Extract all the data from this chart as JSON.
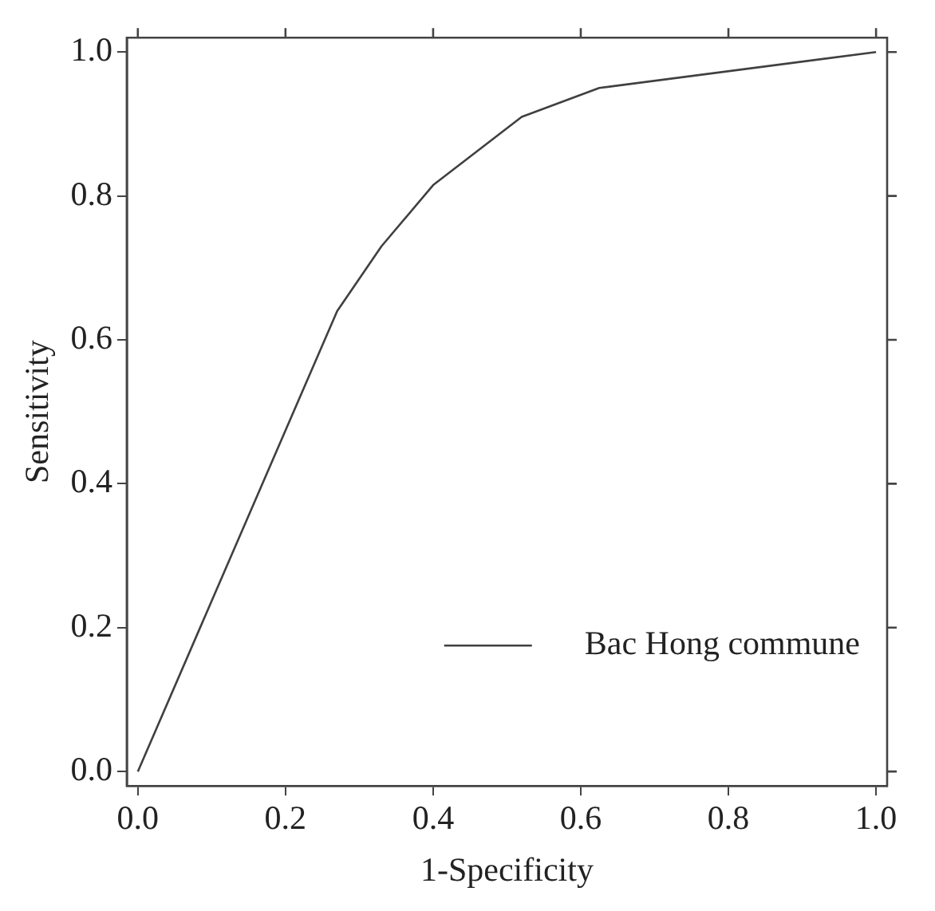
{
  "chart_data": {
    "type": "line",
    "xlabel": "1-Specificity",
    "ylabel": "Sensitivity",
    "series": [
      {
        "name": "Bac Hong commune",
        "color": "#404040",
        "x": [
          0,
          0.27,
          0.33,
          0.4,
          0.52,
          0.625,
          1.0
        ],
        "values": [
          0,
          0.64,
          0.73,
          0.815,
          0.91,
          0.95,
          1.0
        ]
      }
    ],
    "xlim": [
      -0.015,
      1.015
    ],
    "ylim": [
      -0.02,
      1.02
    ],
    "xticks": [
      {
        "value": 0,
        "label": "0.0"
      },
      0.2,
      0.4,
      0.6,
      0.8,
      {
        "value": 1,
        "label": "1.0"
      }
    ],
    "yticks": [
      {
        "value": 0,
        "label": "0.0"
      },
      0.2,
      0.4,
      0.6,
      0.8,
      {
        "value": 1,
        "label": "1.0"
      }
    ],
    "legend": "bottom right",
    "marker": "none",
    "line_style": "solid",
    "grid": false
  }
}
